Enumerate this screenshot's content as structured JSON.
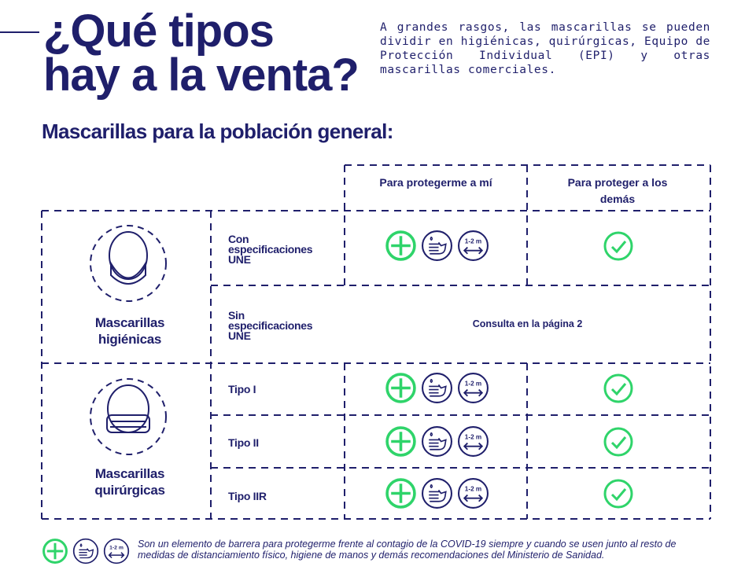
{
  "title": {
    "line1": "¿Qué tipos",
    "line2": "hay a la venta?"
  },
  "intro": "A grandes rasgos, las mascarillas se pueden dividir en higiénicas, quirúrgicas, Equipo de Protección Individual (EPI) y otras mascarillas comerciales.",
  "subtitle": "Mascarillas para la población general:",
  "table": {
    "headers": [
      "Para protegerme a mí",
      "Para proteger a los demás"
    ],
    "categories": [
      {
        "name": "Mascarillas higiénicas",
        "rows": [
          {
            "label": "Con especificaciones UNE",
            "protect_me": [
              "plus-icon",
              "handwash-icon",
              "distance-icon"
            ],
            "protect_others": "check-icon"
          },
          {
            "label": "Sin especificaciones UNE",
            "note": "Consulta en la página 2"
          }
        ]
      },
      {
        "name": "Mascarillas quirúrgicas",
        "rows": [
          {
            "label": "Tipo I",
            "protect_me": [
              "plus-icon",
              "handwash-icon",
              "distance-icon"
            ],
            "protect_others": "check-icon"
          },
          {
            "label": "Tipo II",
            "protect_me": [
              "plus-icon",
              "handwash-icon",
              "distance-icon"
            ],
            "protect_others": "check-icon"
          },
          {
            "label": "Tipo IIR",
            "protect_me": [
              "plus-icon",
              "handwash-icon",
              "distance-icon"
            ],
            "protect_others": "check-icon"
          }
        ]
      }
    ]
  },
  "distance_label": "1-2 m",
  "footnote": "Son un elemento de barrera para protegerme frente al contagio de la COVID-19 siempre y cuando se usen junto al resto de medidas de distanciamiento físico, higiene de manos y demás recomendaciones del Ministerio de Sanidad.",
  "colors": {
    "navy": "#1f1f6b",
    "green": "#2fd46a"
  }
}
